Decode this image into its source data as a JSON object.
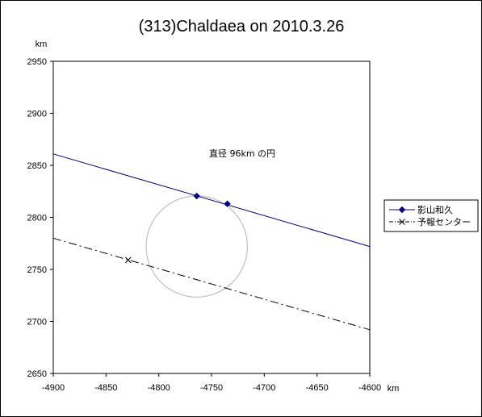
{
  "chart_data": {
    "type": "line",
    "title": "(313)Chaldaea on 2010.3.26",
    "x_unit": "km",
    "y_unit": "km",
    "xlim": [
      -4900,
      -4600
    ],
    "ylim": [
      2650,
      2950
    ],
    "x_ticks": [
      -4900,
      -4850,
      -4800,
      -4750,
      -4700,
      -4650,
      -4600
    ],
    "y_ticks": [
      2650,
      2700,
      2750,
      2800,
      2850,
      2900,
      2950
    ],
    "grid": false,
    "legend_position": "right",
    "annotation": "直径 96km の円",
    "series": [
      {
        "name": "影山和久",
        "color": "#000080",
        "style": "solid",
        "marker": "diamond",
        "line": [
          [
            -4900,
            2861
          ],
          [
            -4600,
            2772
          ]
        ],
        "points": [
          [
            -4764,
            2820.5
          ],
          [
            -4735,
            2813
          ]
        ]
      },
      {
        "name": "予報センター",
        "color": "#000000",
        "style": "dashdot",
        "marker": "x",
        "line": [
          [
            -4900,
            2780
          ],
          [
            -4600,
            2692
          ]
        ],
        "points": [
          [
            -4829,
            2759
          ]
        ]
      }
    ],
    "circle": {
      "center": [
        -4764,
        2772
      ],
      "diameter": 96,
      "color": "#c0c0c0"
    }
  }
}
